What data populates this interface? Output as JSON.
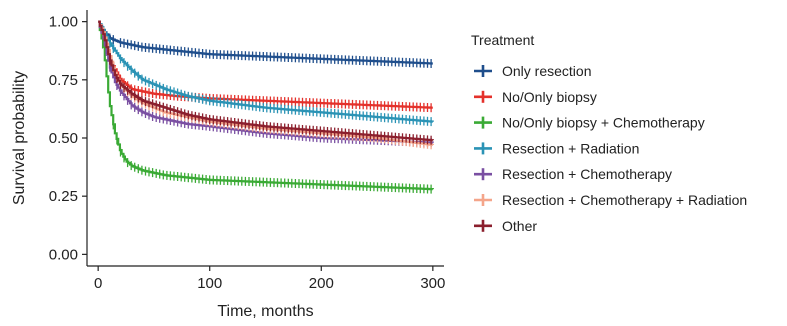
{
  "chart_data": {
    "type": "line",
    "xlabel": "Time, months",
    "ylabel": "Survival probability",
    "xlim": [
      -10,
      310
    ],
    "ylim": [
      -0.05,
      1.05
    ],
    "xticks": [
      0,
      100,
      200,
      300
    ],
    "xtick_labels": [
      "0",
      "100",
      "200",
      "300"
    ],
    "yticks": [
      0.0,
      0.25,
      0.5,
      0.75,
      1.0
    ],
    "ytick_labels": [
      "0.00",
      "0.25",
      "0.50",
      "0.75",
      "1.00"
    ],
    "grid": false,
    "legend": {
      "title": "Treatment",
      "placement": "right"
    },
    "series": [
      {
        "name": "Only resection",
        "color": "#1f4e8c",
        "x": [
          0,
          5,
          10,
          20,
          40,
          60,
          100,
          150,
          200,
          250,
          300
        ],
        "y": [
          1.0,
          0.96,
          0.93,
          0.91,
          0.89,
          0.88,
          0.86,
          0.85,
          0.84,
          0.83,
          0.82
        ]
      },
      {
        "name": "No/Only biopsy",
        "color": "#e4312b",
        "x": [
          0,
          5,
          10,
          20,
          30,
          50,
          70,
          100,
          150,
          200,
          250,
          300
        ],
        "y": [
          1.0,
          0.93,
          0.84,
          0.75,
          0.71,
          0.69,
          0.68,
          0.67,
          0.66,
          0.65,
          0.64,
          0.63
        ]
      },
      {
        "name": "No/Only biopsy + Chemotherapy",
        "color": "#3aaa35",
        "x": [
          0,
          5,
          10,
          15,
          20,
          25,
          30,
          40,
          50,
          60,
          80,
          100,
          150,
          200,
          250,
          300
        ],
        "y": [
          1.0,
          0.88,
          0.65,
          0.52,
          0.44,
          0.4,
          0.38,
          0.36,
          0.35,
          0.34,
          0.33,
          0.32,
          0.31,
          0.3,
          0.29,
          0.28
        ]
      },
      {
        "name": "Resection + Radiation",
        "color": "#2a93b5",
        "x": [
          0,
          5,
          10,
          20,
          30,
          40,
          60,
          80,
          100,
          150,
          200,
          250,
          300
        ],
        "y": [
          1.0,
          0.96,
          0.91,
          0.84,
          0.79,
          0.75,
          0.71,
          0.68,
          0.66,
          0.63,
          0.61,
          0.59,
          0.57
        ]
      },
      {
        "name": "Resection + Chemotherapy",
        "color": "#7a4fa2",
        "x": [
          0,
          5,
          10,
          15,
          20,
          30,
          40,
          50,
          60,
          80,
          100,
          150,
          200,
          250,
          300
        ],
        "y": [
          1.0,
          0.92,
          0.81,
          0.74,
          0.7,
          0.64,
          0.61,
          0.59,
          0.58,
          0.56,
          0.55,
          0.52,
          0.5,
          0.49,
          0.48
        ]
      },
      {
        "name": "Resection + Chemotherapy + Radiation",
        "color": "#f4a58a",
        "x": [
          0,
          5,
          10,
          15,
          20,
          30,
          40,
          50,
          60,
          80,
          100,
          150,
          200,
          250,
          300
        ],
        "y": [
          1.0,
          0.95,
          0.86,
          0.78,
          0.73,
          0.68,
          0.65,
          0.63,
          0.61,
          0.59,
          0.57,
          0.54,
          0.52,
          0.5,
          0.47
        ]
      },
      {
        "name": "Other",
        "color": "#8b1f2d",
        "x": [
          0,
          5,
          10,
          15,
          20,
          30,
          40,
          60,
          80,
          100,
          150,
          200,
          250,
          300
        ],
        "y": [
          1.0,
          0.94,
          0.84,
          0.77,
          0.73,
          0.69,
          0.66,
          0.63,
          0.6,
          0.58,
          0.55,
          0.53,
          0.51,
          0.49
        ]
      }
    ]
  }
}
